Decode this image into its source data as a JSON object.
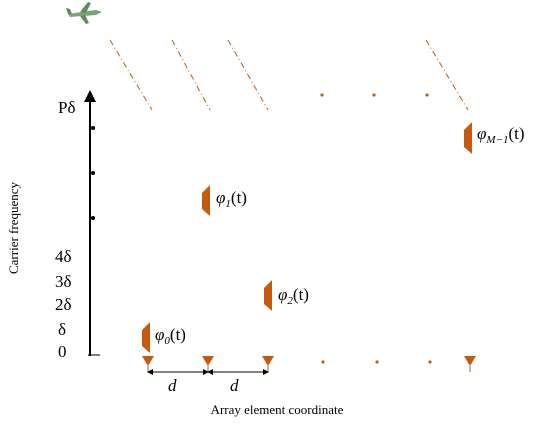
{
  "axis": {
    "y_label": "Carrier frequency",
    "x_label": "Array element coordinate",
    "ticks": [
      "Pδ",
      "4δ",
      "3δ",
      "2δ",
      "δ",
      "0"
    ]
  },
  "spacings": [
    "d",
    "d"
  ],
  "phases": [
    {
      "symbol": "φ",
      "subscript": "0",
      "argument": "(t)"
    },
    {
      "symbol": "φ",
      "subscript": "1",
      "argument": "(t)"
    },
    {
      "symbol": "φ",
      "subscript": "2",
      "argument": "(t)"
    },
    {
      "symbol": "φ",
      "subscript": "M−1",
      "argument": "(t)"
    }
  ]
}
